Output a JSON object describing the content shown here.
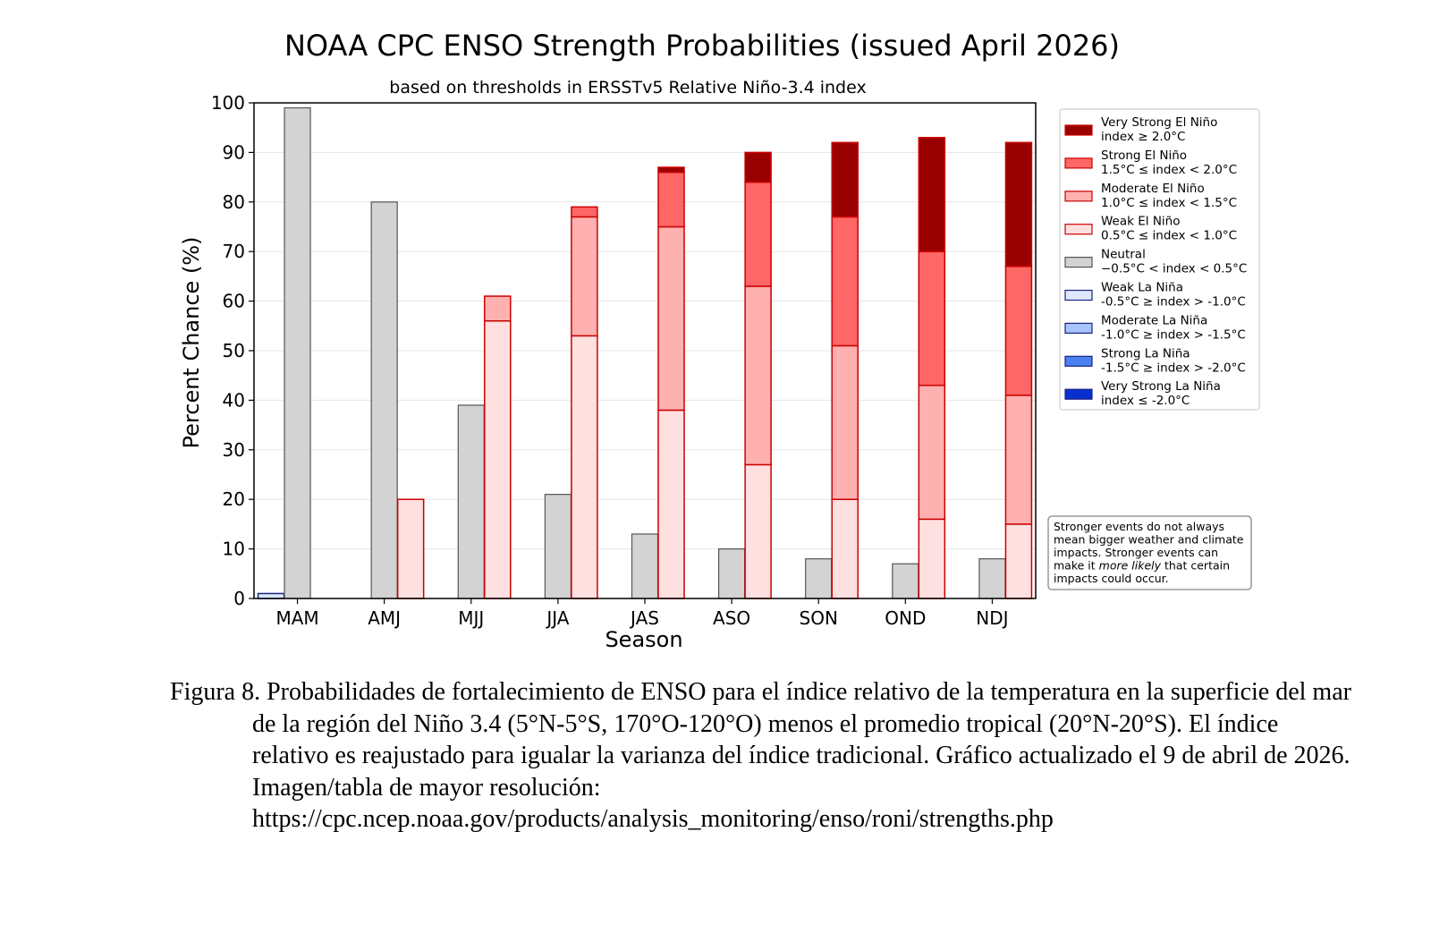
{
  "chart_data": {
    "type": "bar",
    "title": "NOAA CPC ENSO Strength Probabilities (issued April 2026)",
    "subtitle": "based on thresholds in ERSSTv5 Relative Niño-3.4 index",
    "xlabel": "Season",
    "ylabel": "Percent Chance (%)",
    "ylim": [
      0,
      100
    ],
    "yticks": [
      0,
      10,
      20,
      30,
      40,
      50,
      60,
      70,
      80,
      90,
      100
    ],
    "grid": true,
    "categories": [
      "MAM",
      "AMJ",
      "MJJ",
      "JJA",
      "JAS",
      "ASO",
      "SON",
      "OND",
      "NDJ"
    ],
    "series": [
      {
        "name": "Very Strong El Niño",
        "range": "index ≥ 2.0°C",
        "group": "el_nino",
        "color": "#990000",
        "values": [
          0,
          0,
          0,
          0,
          1,
          6,
          15,
          23,
          25
        ]
      },
      {
        "name": "Strong El Niño",
        "range": "1.5°C ≤ index < 2.0°C",
        "group": "el_nino",
        "color": "#ff6666",
        "values": [
          0,
          0,
          0,
          2,
          11,
          21,
          26,
          27,
          26
        ]
      },
      {
        "name": "Moderate El Niño",
        "range": "1.0°C ≤ index < 1.5°C",
        "group": "el_nino",
        "color": "#ffb0b0",
        "values": [
          0,
          0,
          5,
          24,
          37,
          36,
          31,
          27,
          26
        ]
      },
      {
        "name": "Weak El Niño",
        "range": "0.5°C ≤ index < 1.0°C",
        "group": "el_nino",
        "color": "#ffe0e0",
        "values": [
          0,
          20,
          56,
          53,
          38,
          27,
          20,
          16,
          15
        ]
      },
      {
        "name": "Neutral",
        "range": "−0.5°C < index < 0.5°C",
        "group": "neutral",
        "color": "#d3d3d3",
        "values": [
          99,
          80,
          39,
          21,
          13,
          10,
          8,
          7,
          8
        ]
      },
      {
        "name": "Weak La Niña",
        "range": "-0.5°C ≥ index > -1.0°C",
        "group": "la_nina",
        "color": "#dde8ff",
        "values": [
          1,
          0,
          0,
          0,
          0,
          0,
          0,
          0,
          0
        ]
      },
      {
        "name": "Moderate La Niña",
        "range": "-1.0°C ≥ index > -1.5°C",
        "group": "la_nina",
        "color": "#a8c4ff",
        "values": [
          0,
          0,
          0,
          0,
          0,
          0,
          0,
          0,
          0
        ]
      },
      {
        "name": "Strong La Niña",
        "range": "-1.5°C ≥ index > -2.0°C",
        "group": "la_nina",
        "color": "#4a80f0",
        "values": [
          0,
          0,
          0,
          0,
          0,
          0,
          0,
          0,
          0
        ]
      },
      {
        "name": "Very Strong La Niña",
        "range": "index ≤ -2.0°C",
        "group": "la_nina",
        "color": "#0a2fd0",
        "values": [
          0,
          0,
          0,
          0,
          0,
          0,
          0,
          0,
          0
        ]
      }
    ],
    "legend_position": "right",
    "note": {
      "before_italic": "Stronger events do not always mean bigger weather and climate impacts. Stronger events can make it ",
      "italic": "more likely",
      "after_italic": " that certain impacts could occur."
    }
  },
  "caption": {
    "lines": [
      "Figura 8. Probabilidades de fortalecimiento de ENSO para el índice relativo de la temperatura en",
      "la superficie del mar de la región del Niño 3.4 (5°N-5°S, 170°O-120°O) menos el",
      "promedio tropical (20°N-20°S). El índice relativo es reajustado para igualar la varianza",
      "del índice tradicional. Gráfico actualizado el 9 de abril de 2026. Imagen/tabla de mayor",
      "resolución:"
    ],
    "url": "https://cpc.ncep.noaa.gov/products/analysis_monitoring/enso/roni/strengths.php"
  }
}
